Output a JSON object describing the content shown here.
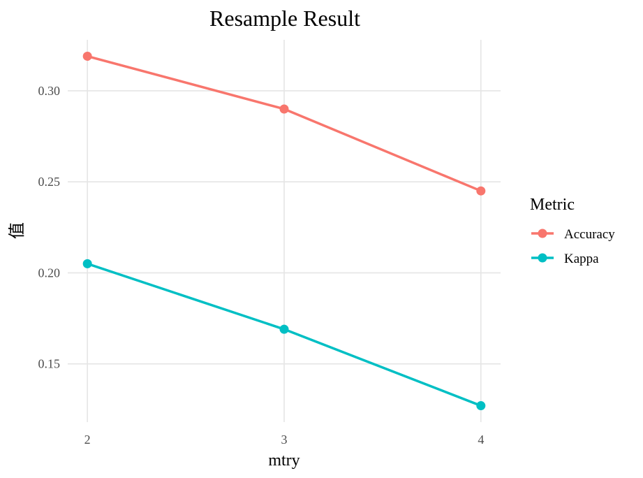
{
  "chart_data": {
    "type": "line",
    "title": "Resample Result",
    "xlabel": "mtry",
    "ylabel": "值",
    "x": [
      2,
      3,
      4
    ],
    "x_tick_labels": [
      "2",
      "3",
      "4"
    ],
    "y_ticks": [
      0.15,
      0.2,
      0.25,
      0.3
    ],
    "y_tick_labels": [
      "0.15",
      "0.20",
      "0.25",
      "0.30"
    ],
    "ylim": [
      0.118,
      0.328
    ],
    "grid": true,
    "legend": {
      "title": "Metric",
      "position": "right"
    },
    "series": [
      {
        "name": "Accuracy",
        "color": "#F8766D",
        "values": [
          0.319,
          0.29,
          0.245
        ]
      },
      {
        "name": "Kappa",
        "color": "#00BFC4",
        "values": [
          0.205,
          0.169,
          0.127
        ]
      }
    ]
  }
}
